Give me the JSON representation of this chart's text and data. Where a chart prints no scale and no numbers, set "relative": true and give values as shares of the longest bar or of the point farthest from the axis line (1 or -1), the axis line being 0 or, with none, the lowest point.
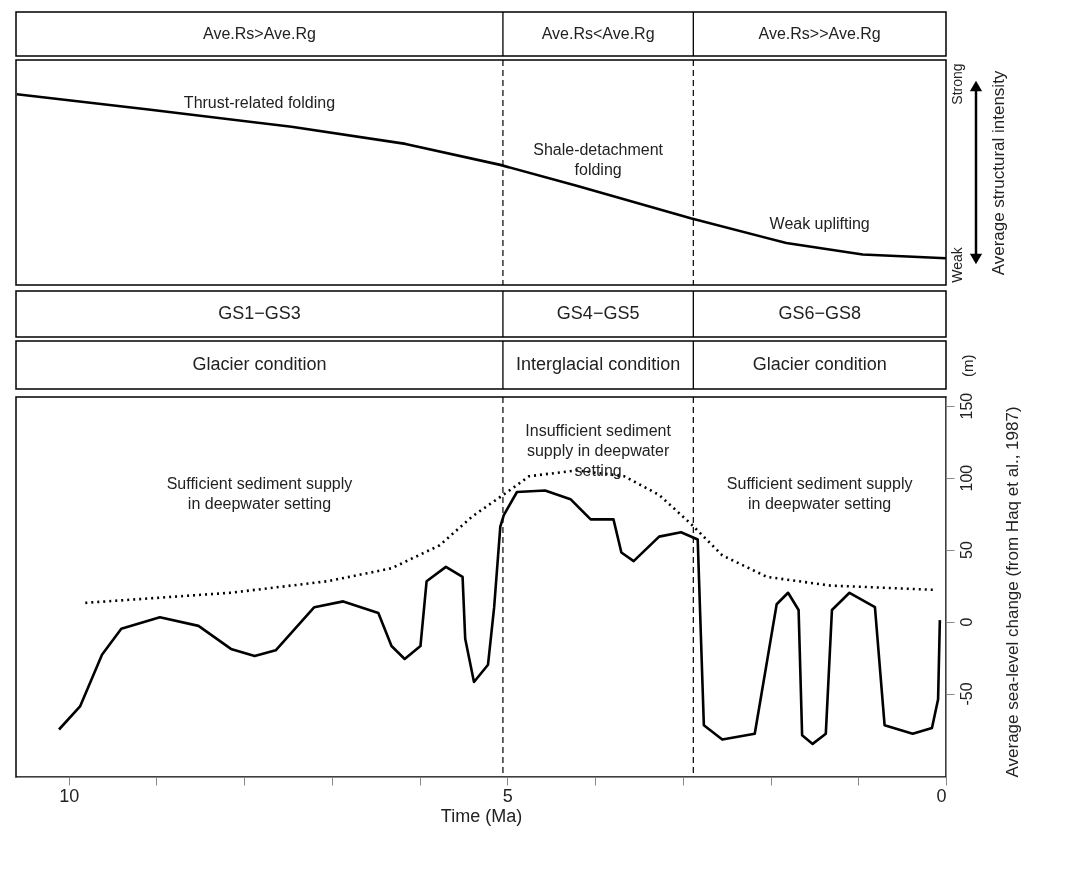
{
  "chart_data": [
    {
      "type": "line",
      "relative": true,
      "ylabel": "Average structural intensity",
      "xlim": [
        10.6,
        0
      ],
      "tick_labels": false,
      "annotations": [
        "Ave.Rs>Ave.Rg",
        "Ave.Rs<Ave.Rg",
        "Ave.Rs>>Ave.Rg",
        "Strong",
        "Weak",
        "Thrust-related folding",
        "Shale-detachment\nfolding",
        "Weak uplifting"
      ],
      "ref_lines": [
        {
          "axis": "x",
          "value": 5.05,
          "line_style": "dashed",
          "color": "#000000"
        },
        {
          "axis": "x",
          "value": 2.88,
          "line_style": "dashed",
          "color": "#000000"
        }
      ],
      "x": [
        10.59,
        9.09,
        7.46,
        6.16,
        5.08,
        4.21,
        2.91,
        1.82,
        0.95,
        0.0
      ],
      "series": [
        {
          "color": "#000000",
          "line_style": "solid",
          "values": [
            1,
            0.92,
            0.83,
            0.74,
            0.63,
            0.52,
            0.35,
            0.22,
            0.16,
            0.14
          ]
        }
      ]
    },
    {
      "type": "line",
      "xlabel": "Time (Ma)",
      "ylabel": "Average sea-level change (from Haq et al., 1987)",
      "xlim": [
        10.6,
        0
      ],
      "ylim": [
        -108,
        156
      ],
      "xticks": [
        10,
        {
          "value": 9,
          "label": null
        },
        {
          "value": 8,
          "label": null
        },
        {
          "value": 7,
          "label": null
        },
        {
          "value": 6,
          "label": null
        },
        5,
        {
          "value": 4,
          "label": null
        },
        {
          "value": 3,
          "label": null
        },
        {
          "value": 2,
          "label": null
        },
        {
          "value": 1,
          "label": null
        },
        0
      ],
      "yticks": [
        -50,
        0,
        50,
        100,
        150
      ],
      "annotations": [
        "GS1−GS3",
        "GS4−GS5",
        "GS6−GS8",
        "Glacier condition",
        "Interglacial condition",
        "Glacier condition",
        "(m)",
        "Sufficient sediment supply\nin deepwater setting",
        "Insufficient sediment\nsupply in deepwater\nsetting",
        "Sufficient sediment supply\nin deepwater setting"
      ],
      "ref_lines": [
        {
          "axis": "x",
          "value": 5.05,
          "line_style": "dashed",
          "color": "#000000"
        },
        {
          "axis": "x",
          "value": 2.88,
          "line_style": "dashed",
          "color": "#000000"
        }
      ],
      "series": [
        {
          "color": "#000000",
          "line_style": "solid",
          "x": [
            10.11,
            9.87,
            9.62,
            9.4,
            8.96,
            8.52,
            8.15,
            7.88,
            7.64,
            7.2,
            6.87,
            6.47,
            6.32,
            6.17,
            5.99,
            5.92,
            5.7,
            5.51,
            5.48,
            5.38,
            5.22,
            5.15,
            5.08,
            5.04,
            4.89,
            4.57,
            4.28,
            4.05,
            3.79,
            3.7,
            3.56,
            3.27,
            3.02,
            2.83,
            2.76,
            2.55,
            2.18,
            1.93,
            1.8,
            1.68,
            1.64,
            1.52,
            1.37,
            1.3,
            1.1,
            0.81,
            0.7,
            0.38,
            0.16,
            0.09,
            0.07
          ],
          "values": [
            -75,
            -59,
            -23,
            -5,
            3,
            -3,
            -19,
            -24,
            -20,
            10,
            14,
            6,
            -17,
            -26,
            -17,
            28,
            38,
            31,
            -12,
            -42,
            -30,
            10,
            66,
            74,
            90,
            91,
            85,
            71,
            71,
            48,
            42,
            59,
            62,
            57,
            -72,
            -82,
            -78,
            12,
            20,
            8,
            -79,
            -85,
            -78,
            8,
            20,
            10,
            -72,
            -78,
            -74,
            -54,
            1
          ]
        },
        {
          "color": "#000000",
          "line_style": "dotted",
          "x": [
            9.81,
            8.15,
            7.05,
            6.32,
            5.77,
            5.4,
            5.0,
            4.75,
            4.21,
            3.67,
            3.27,
            2.91,
            2.55,
            2.04,
            1.32,
            0.12
          ],
          "values": [
            13,
            20,
            28,
            37,
            53,
            73,
            90,
            101,
            105,
            101,
            88,
            68,
            46,
            31,
            25,
            22
          ]
        }
      ]
    }
  ]
}
